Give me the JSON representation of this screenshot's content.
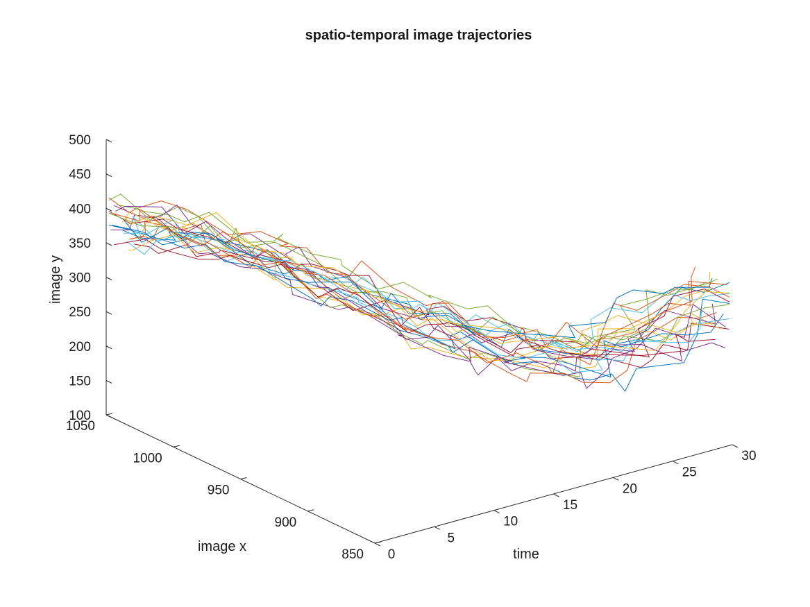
{
  "chart_data": {
    "type": "line",
    "title": "spatio-temporal image trajectories",
    "xlabel": "time",
    "ylabel": "image x",
    "zlabel": "image y",
    "axes": {
      "time": {
        "range": [
          0,
          30
        ],
        "ticks": [
          0,
          5,
          10,
          15,
          20,
          25,
          30
        ]
      },
      "imagex": {
        "range": [
          850,
          1050
        ],
        "ticks": [
          850,
          900,
          950,
          1000,
          1050
        ]
      },
      "imagey": {
        "range": [
          100,
          500
        ],
        "ticks": [
          100,
          150,
          200,
          250,
          300,
          350,
          400,
          450,
          500
        ]
      }
    },
    "grid": false,
    "legend": "none",
    "series_count": 24,
    "colors": [
      "#0072BD",
      "#D95319",
      "#EDB120",
      "#7E2F8E",
      "#77AC30",
      "#4DBEEE",
      "#A2142F"
    ]
  }
}
